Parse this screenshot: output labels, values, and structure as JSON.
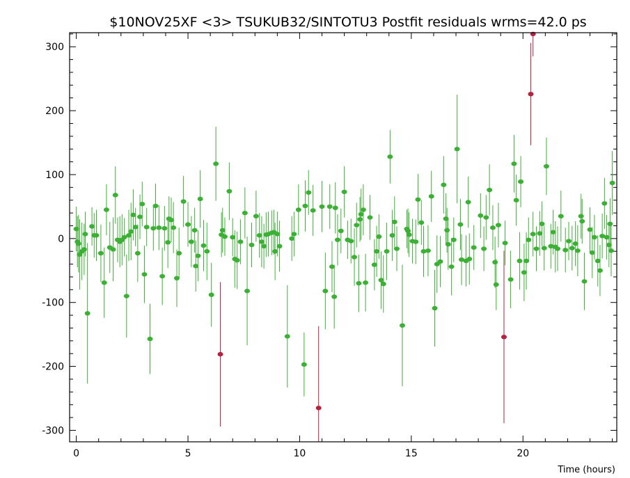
{
  "chart_data": {
    "type": "scatter",
    "title": "$10NOV25XF <3> TSUKUB32/SINTOTU3 Postfit residuals wrms=42.0  ps",
    "xlabel": "Time (hours)",
    "ylabel": "",
    "xlim": [
      -0.3,
      24.2
    ],
    "ylim": [
      -318,
      322
    ],
    "x_ticks": [
      0,
      5,
      10,
      15,
      20
    ],
    "y_ticks": [
      -300,
      -200,
      -100,
      0,
      100,
      200,
      300
    ],
    "grid": false,
    "colors": {
      "good": "#3cb034",
      "outlier": "#b5213f"
    },
    "series": [
      {
        "name": "",
        "color": "#3cb034",
        "points": [
          {
            "x": 0.0,
            "y": 15,
            "e": 35
          },
          {
            "x": 0.05,
            "y": -5,
            "e": 40
          },
          {
            "x": 0.1,
            "y": -8,
            "e": 45
          },
          {
            "x": 0.15,
            "y": -25,
            "e": 55
          },
          {
            "x": 0.25,
            "y": -20,
            "e": 45
          },
          {
            "x": 0.35,
            "y": -17,
            "e": 40
          },
          {
            "x": 0.4,
            "y": 7,
            "e": 35
          },
          {
            "x": 0.5,
            "y": -117,
            "e": 110
          },
          {
            "x": 0.7,
            "y": 19,
            "e": 30
          },
          {
            "x": 0.8,
            "y": 5,
            "e": 35
          },
          {
            "x": 0.9,
            "y": 5,
            "e": 40
          },
          {
            "x": 1.1,
            "y": -23,
            "e": 45
          },
          {
            "x": 1.25,
            "y": -69,
            "e": 55
          },
          {
            "x": 1.35,
            "y": 45,
            "e": 40
          },
          {
            "x": 1.5,
            "y": -14,
            "e": 40
          },
          {
            "x": 1.65,
            "y": -17,
            "e": 50
          },
          {
            "x": 1.75,
            "y": 68,
            "e": 45
          },
          {
            "x": 1.85,
            "y": -2,
            "e": 35
          },
          {
            "x": 1.95,
            "y": -5,
            "e": 40
          },
          {
            "x": 2.05,
            "y": -2,
            "e": 40
          },
          {
            "x": 2.15,
            "y": 2,
            "e": 30
          },
          {
            "x": 2.25,
            "y": -90,
            "e": 65
          },
          {
            "x": 2.35,
            "y": 5,
            "e": 40
          },
          {
            "x": 2.45,
            "y": 11,
            "e": 45
          },
          {
            "x": 2.55,
            "y": 37,
            "e": 40
          },
          {
            "x": 2.65,
            "y": 18,
            "e": 30
          },
          {
            "x": 2.75,
            "y": -23,
            "e": 45
          },
          {
            "x": 2.85,
            "y": 34,
            "e": 35
          },
          {
            "x": 2.95,
            "y": 54,
            "e": 35
          },
          {
            "x": 3.05,
            "y": -56,
            "e": 45
          },
          {
            "x": 3.15,
            "y": 18,
            "e": 30
          },
          {
            "x": 3.3,
            "y": -157,
            "e": 55
          },
          {
            "x": 3.45,
            "y": 16,
            "e": 35
          },
          {
            "x": 3.55,
            "y": 51,
            "e": 35
          },
          {
            "x": 3.7,
            "y": 17,
            "e": 35
          },
          {
            "x": 3.85,
            "y": -59,
            "e": 45
          },
          {
            "x": 3.95,
            "y": 16,
            "e": 35
          },
          {
            "x": 4.1,
            "y": -6,
            "e": 40
          },
          {
            "x": 4.15,
            "y": 31,
            "e": 35
          },
          {
            "x": 4.25,
            "y": 29,
            "e": 35
          },
          {
            "x": 4.35,
            "y": 17,
            "e": 40
          },
          {
            "x": 4.5,
            "y": -62,
            "e": 45
          },
          {
            "x": 4.6,
            "y": -23,
            "e": 40
          },
          {
            "x": 4.8,
            "y": 58,
            "e": 40
          },
          {
            "x": 5.0,
            "y": 22,
            "e": 35
          },
          {
            "x": 5.15,
            "y": -5,
            "e": 40
          },
          {
            "x": 5.3,
            "y": 13,
            "e": 35
          },
          {
            "x": 5.35,
            "y": -43,
            "e": 40
          },
          {
            "x": 5.45,
            "y": -27,
            "e": 40
          },
          {
            "x": 5.55,
            "y": 62,
            "e": 45
          },
          {
            "x": 5.7,
            "y": -11,
            "e": 40
          },
          {
            "x": 5.85,
            "y": -20,
            "e": 45
          },
          {
            "x": 6.05,
            "y": -88,
            "e": 50
          },
          {
            "x": 6.25,
            "y": 117,
            "e": 58
          },
          {
            "x": 6.5,
            "y": 6,
            "e": 35
          },
          {
            "x": 6.55,
            "y": 13,
            "e": 35
          },
          {
            "x": 6.65,
            "y": 3,
            "e": 30
          },
          {
            "x": 6.85,
            "y": 74,
            "e": 45
          },
          {
            "x": 7.0,
            "y": 2,
            "e": 30
          },
          {
            "x": 7.1,
            "y": -32,
            "e": 45
          },
          {
            "x": 7.2,
            "y": -34,
            "e": 45
          },
          {
            "x": 7.35,
            "y": -5,
            "e": 35
          },
          {
            "x": 7.55,
            "y": 40,
            "e": 40
          },
          {
            "x": 7.65,
            "y": -82,
            "e": 85
          },
          {
            "x": 7.85,
            "y": -10,
            "e": 35
          },
          {
            "x": 8.05,
            "y": 35,
            "e": 40
          },
          {
            "x": 8.2,
            "y": 5,
            "e": 35
          },
          {
            "x": 8.3,
            "y": -5,
            "e": 40
          },
          {
            "x": 8.4,
            "y": -12,
            "e": 35
          },
          {
            "x": 8.5,
            "y": 6,
            "e": 35
          },
          {
            "x": 8.6,
            "y": 7,
            "e": 35
          },
          {
            "x": 8.75,
            "y": 9,
            "e": 35
          },
          {
            "x": 8.85,
            "y": 10,
            "e": 35
          },
          {
            "x": 8.9,
            "y": -20,
            "e": 45
          },
          {
            "x": 9.0,
            "y": 7,
            "e": 35
          },
          {
            "x": 9.1,
            "y": -12,
            "e": 40
          },
          {
            "x": 9.45,
            "y": -153,
            "e": 80
          },
          {
            "x": 9.65,
            "y": 0,
            "e": 35
          },
          {
            "x": 9.75,
            "y": 7,
            "e": 35
          },
          {
            "x": 9.95,
            "y": 45,
            "e": 40
          },
          {
            "x": 10.2,
            "y": -197,
            "e": 50
          },
          {
            "x": 10.25,
            "y": 51,
            "e": 40
          },
          {
            "x": 10.4,
            "y": 72,
            "e": 35
          },
          {
            "x": 10.6,
            "y": 44,
            "e": 40
          },
          {
            "x": 11.0,
            "y": 50,
            "e": 40
          },
          {
            "x": 11.15,
            "y": -82,
            "e": 60
          },
          {
            "x": 11.35,
            "y": 50,
            "e": 35
          },
          {
            "x": 11.45,
            "y": -44,
            "e": 40
          },
          {
            "x": 11.55,
            "y": -91,
            "e": 50
          },
          {
            "x": 11.6,
            "y": 48,
            "e": 40
          },
          {
            "x": 11.7,
            "y": -2,
            "e": 40
          },
          {
            "x": 11.85,
            "y": 12,
            "e": 35
          },
          {
            "x": 12.0,
            "y": 73,
            "e": 40
          },
          {
            "x": 12.15,
            "y": -2,
            "e": 30
          },
          {
            "x": 12.3,
            "y": -4,
            "e": 35
          },
          {
            "x": 12.45,
            "y": -29,
            "e": 45
          },
          {
            "x": 12.55,
            "y": 21,
            "e": 35
          },
          {
            "x": 12.65,
            "y": -70,
            "e": 45
          },
          {
            "x": 12.7,
            "y": 30,
            "e": 35
          },
          {
            "x": 12.75,
            "y": 38,
            "e": 40
          },
          {
            "x": 12.85,
            "y": 45,
            "e": 40
          },
          {
            "x": 12.95,
            "y": -69,
            "e": 45
          },
          {
            "x": 13.15,
            "y": 33,
            "e": 35
          },
          {
            "x": 13.35,
            "y": -41,
            "e": 40
          },
          {
            "x": 13.45,
            "y": -20,
            "e": 40
          },
          {
            "x": 13.55,
            "y": 3,
            "e": 35
          },
          {
            "x": 13.65,
            "y": -65,
            "e": 45
          },
          {
            "x": 13.75,
            "y": -71,
            "e": 45
          },
          {
            "x": 13.9,
            "y": -20,
            "e": 45
          },
          {
            "x": 14.05,
            "y": 128,
            "e": 42
          },
          {
            "x": 14.15,
            "y": 5,
            "e": 40
          },
          {
            "x": 14.25,
            "y": 26,
            "e": 40
          },
          {
            "x": 14.35,
            "y": -16,
            "e": 35
          },
          {
            "x": 14.6,
            "y": -136,
            "e": 95
          },
          {
            "x": 14.8,
            "y": 15,
            "e": 30
          },
          {
            "x": 14.85,
            "y": 12,
            "e": 35
          },
          {
            "x": 14.9,
            "y": 6,
            "e": 35
          },
          {
            "x": 15.05,
            "y": -4,
            "e": 35
          },
          {
            "x": 15.2,
            "y": -5,
            "e": 35
          },
          {
            "x": 15.3,
            "y": 61,
            "e": 40
          },
          {
            "x": 15.45,
            "y": 25,
            "e": 35
          },
          {
            "x": 15.55,
            "y": -20,
            "e": 40
          },
          {
            "x": 15.75,
            "y": -19,
            "e": 40
          },
          {
            "x": 15.9,
            "y": 66,
            "e": 40
          },
          {
            "x": 16.05,
            "y": -109,
            "e": 60
          },
          {
            "x": 16.15,
            "y": -40,
            "e": 45
          },
          {
            "x": 16.3,
            "y": -36,
            "e": 40
          },
          {
            "x": 16.45,
            "y": 84,
            "e": 45
          },
          {
            "x": 16.55,
            "y": 31,
            "e": 40
          },
          {
            "x": 16.6,
            "y": 13,
            "e": 35
          },
          {
            "x": 16.65,
            "y": -9,
            "e": 40
          },
          {
            "x": 16.8,
            "y": -44,
            "e": 45
          },
          {
            "x": 16.9,
            "y": -2,
            "e": 35
          },
          {
            "x": 17.05,
            "y": 140,
            "e": 85
          },
          {
            "x": 17.2,
            "y": 22,
            "e": 40
          },
          {
            "x": 17.25,
            "y": -33,
            "e": 40
          },
          {
            "x": 17.45,
            "y": -35,
            "e": 40
          },
          {
            "x": 17.55,
            "y": 57,
            "e": 40
          },
          {
            "x": 17.6,
            "y": -32,
            "e": 40
          },
          {
            "x": 17.8,
            "y": -14,
            "e": 35
          },
          {
            "x": 18.1,
            "y": 36,
            "e": 35
          },
          {
            "x": 18.25,
            "y": -16,
            "e": 35
          },
          {
            "x": 18.35,
            "y": 33,
            "e": 35
          },
          {
            "x": 18.5,
            "y": 76,
            "e": 40
          },
          {
            "x": 18.65,
            "y": 17,
            "e": 35
          },
          {
            "x": 18.75,
            "y": -37,
            "e": 40
          },
          {
            "x": 18.8,
            "y": -72,
            "e": 40
          },
          {
            "x": 18.9,
            "y": 21,
            "e": 35
          },
          {
            "x": 19.2,
            "y": -7,
            "e": 35
          },
          {
            "x": 19.45,
            "y": -64,
            "e": 45
          },
          {
            "x": 19.6,
            "y": 117,
            "e": 45
          },
          {
            "x": 19.7,
            "y": 60,
            "e": 40
          },
          {
            "x": 19.85,
            "y": -35,
            "e": 45
          },
          {
            "x": 19.9,
            "y": 89,
            "e": 40
          },
          {
            "x": 20.05,
            "y": -53,
            "e": 45
          },
          {
            "x": 20.15,
            "y": -35,
            "e": 45
          },
          {
            "x": 20.25,
            "y": -2,
            "e": 35
          },
          {
            "x": 20.45,
            "y": 7,
            "e": 35
          },
          {
            "x": 20.6,
            "y": -16,
            "e": 35
          },
          {
            "x": 20.75,
            "y": 8,
            "e": 35
          },
          {
            "x": 20.85,
            "y": 23,
            "e": 35
          },
          {
            "x": 20.95,
            "y": -15,
            "e": 35
          },
          {
            "x": 21.05,
            "y": 113,
            "e": 45
          },
          {
            "x": 21.25,
            "y": -12,
            "e": 35
          },
          {
            "x": 21.35,
            "y": 10,
            "e": 35
          },
          {
            "x": 21.45,
            "y": -13,
            "e": 40
          },
          {
            "x": 21.55,
            "y": -16,
            "e": 35
          },
          {
            "x": 21.7,
            "y": 35,
            "e": 40
          },
          {
            "x": 21.9,
            "y": -18,
            "e": 35
          },
          {
            "x": 22.05,
            "y": -4,
            "e": 30
          },
          {
            "x": 22.2,
            "y": -15,
            "e": 35
          },
          {
            "x": 22.35,
            "y": -8,
            "e": 35
          },
          {
            "x": 22.45,
            "y": -19,
            "e": 40
          },
          {
            "x": 22.6,
            "y": 35,
            "e": 35
          },
          {
            "x": 22.65,
            "y": 27,
            "e": 35
          },
          {
            "x": 22.75,
            "y": -67,
            "e": 45
          },
          {
            "x": 23.0,
            "y": 14,
            "e": 35
          },
          {
            "x": 23.1,
            "y": -22,
            "e": 40
          },
          {
            "x": 23.2,
            "y": 2,
            "e": 35
          },
          {
            "x": 23.35,
            "y": -35,
            "e": 40
          },
          {
            "x": 23.45,
            "y": -50,
            "e": 40
          },
          {
            "x": 23.55,
            "y": 4,
            "e": 35
          },
          {
            "x": 23.65,
            "y": 55,
            "e": 40
          },
          {
            "x": 23.75,
            "y": 2,
            "e": 35
          },
          {
            "x": 23.85,
            "y": -10,
            "e": 35
          },
          {
            "x": 23.9,
            "y": 23,
            "e": 40
          },
          {
            "x": 23.95,
            "y": -19,
            "e": 40
          },
          {
            "x": 24.0,
            "y": 87,
            "e": 50
          }
        ]
      },
      {
        "name": "",
        "color": "#b5213f",
        "points": [
          {
            "x": 6.45,
            "y": -181,
            "e": 113
          },
          {
            "x": 10.85,
            "y": -265,
            "e": 128
          },
          {
            "x": 19.15,
            "y": -154,
            "e": 135
          },
          {
            "x": 20.35,
            "y": 226,
            "e": 80
          },
          {
            "x": 20.45,
            "y": 320,
            "e": 35
          }
        ]
      }
    ]
  }
}
